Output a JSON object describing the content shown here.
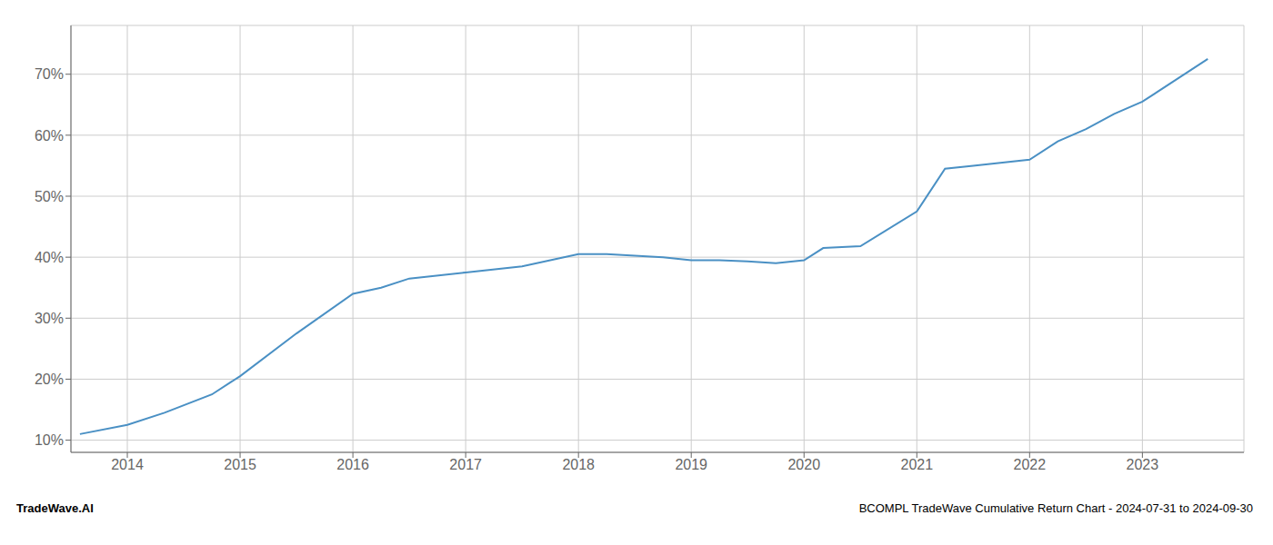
{
  "chart_data": {
    "type": "line",
    "x": [
      2013.58,
      2014.0,
      2014.33,
      2014.75,
      2015.0,
      2015.5,
      2016.0,
      2016.25,
      2016.5,
      2017.0,
      2017.5,
      2018.0,
      2018.25,
      2018.75,
      2019.0,
      2019.25,
      2019.5,
      2019.75,
      2020.0,
      2020.17,
      2020.5,
      2021.0,
      2021.25,
      2021.5,
      2022.0,
      2022.25,
      2022.5,
      2022.75,
      2023.0,
      2023.58
    ],
    "values": [
      11.0,
      12.5,
      14.5,
      17.5,
      20.5,
      27.5,
      34.0,
      35.0,
      36.5,
      37.5,
      38.5,
      40.5,
      40.5,
      40.0,
      39.5,
      39.5,
      39.3,
      39.0,
      39.5,
      41.5,
      41.8,
      47.5,
      54.5,
      55.0,
      56.0,
      59.0,
      61.0,
      63.5,
      65.5,
      72.5
    ],
    "color": "#4a90c4",
    "xlim": [
      2013.5,
      2023.9
    ],
    "ylim": [
      8,
      78
    ],
    "xticks": [
      2014,
      2015,
      2016,
      2017,
      2018,
      2019,
      2020,
      2021,
      2022,
      2023
    ],
    "yticks": [
      {
        "value": 10,
        "label": "10%"
      },
      {
        "value": 20,
        "label": "20%"
      },
      {
        "value": 30,
        "label": "30%"
      },
      {
        "value": 40,
        "label": "40%"
      },
      {
        "value": 50,
        "label": "50%"
      },
      {
        "value": 60,
        "label": "60%"
      },
      {
        "value": 70,
        "label": "70%"
      }
    ],
    "grid": true,
    "annotations": [
      "TradeWave.AI",
      "BCOMPL TradeWave Cumulative Return Chart - 2024-07-31 to 2024-09-30"
    ]
  }
}
